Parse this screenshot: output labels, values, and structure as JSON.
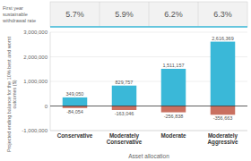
{
  "chart_data": {
    "type": "bar",
    "title": "First year\nsustainable\nwithdrawal rate",
    "annotations": [
      "5.7%",
      "5.9%",
      "6.2%",
      "6.3%"
    ],
    "categories": [
      "Conservative",
      "Moderately\nConservative",
      "Moderate",
      "Moderately\nAggressive"
    ],
    "series": [
      {
        "color": "#3ab8d8",
        "values": [
          349050,
          829757,
          1511157,
          2616369
        ],
        "value_labels": [
          "349,050",
          "829,757",
          "1,511,157",
          "2,616,369"
        ]
      },
      {
        "color": "#c97060",
        "values": [
          -84054,
          -163046,
          -256838,
          -356663
        ],
        "value_labels": [
          "-84,054",
          "-163,046",
          "-256,838",
          "-356,663"
        ]
      }
    ],
    "xlabel": "Asset allocation",
    "ylabel": "Projected ending balance for the 10% best and worst\noutcomes ($)",
    "ylim": [
      -1000000,
      3000000
    ],
    "yticks": [
      {
        "value": -1000000,
        "label": "-1,000,000"
      },
      0,
      {
        "value": 1000000,
        "label": "1,000,000"
      },
      {
        "value": 2000000,
        "label": "2,000,000"
      },
      {
        "value": 3000000,
        "label": "3,000,000"
      }
    ],
    "grid": true,
    "data_labels": true
  }
}
